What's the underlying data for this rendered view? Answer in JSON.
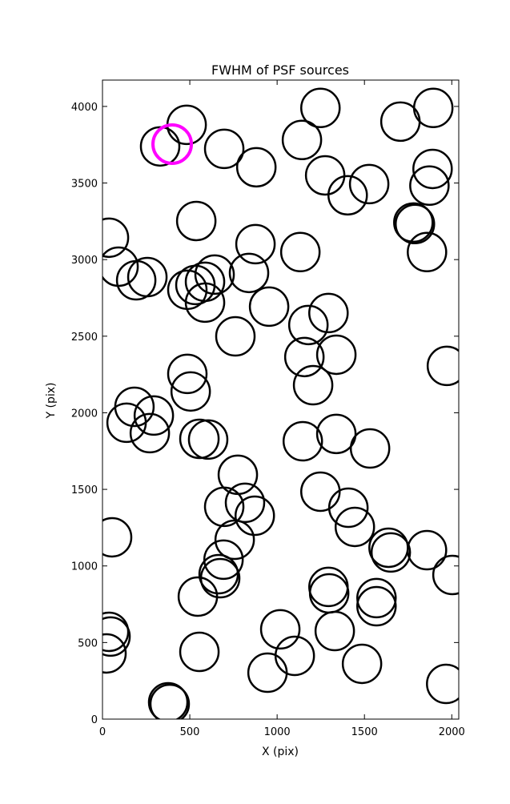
{
  "chart_data": {
    "type": "scatter",
    "title": "FWHM of PSF sources",
    "x_label": "X (pix)",
    "y_label": "Y (pix)",
    "xlim": [
      0,
      2040
    ],
    "ylim": [
      0,
      4172
    ],
    "xticks": [
      0,
      500,
      1000,
      1500,
      2000
    ],
    "yticks": [
      0,
      500,
      1000,
      1500,
      2000,
      2500,
      3000,
      3500,
      4000
    ],
    "series": [
      {
        "color": "#000000",
        "x": [
          330,
          482,
          697,
          881,
          1248,
          1142,
          1275,
          1404,
          1527,
          1706,
          1894,
          1890,
          1872,
          1780,
          1789,
          1858,
          537,
          37,
          92,
          193,
          257,
          876,
          1133,
          486,
          532,
          587,
          642,
          587,
          839,
          954,
          761,
          1179,
          1294,
          1156,
          1339,
          1206,
          1972,
          486,
          505,
          183,
          138,
          294,
          271,
          555,
          605,
          1147,
          1339,
          1532,
          775,
          697,
          816,
          872,
          757,
          1248,
          1408,
          1445,
          55,
          1638,
          1651,
          1858,
          693,
          665,
          674,
          546,
          1294,
          1298,
          1569,
          1569,
          2004,
          37,
          46,
          23,
          1018,
          1330,
          1101,
          555,
          945,
          1486,
          1968,
          376,
          385
        ],
        "values": [
          3739,
          3880,
          3723,
          3603,
          3990,
          3781,
          3550,
          3420,
          3493,
          3901,
          3990,
          3592,
          3483,
          3242,
          3232,
          3049,
          3252,
          3143,
          2954,
          2865,
          2886,
          3101,
          3049,
          2803,
          2834,
          2855,
          2902,
          2719,
          2913,
          2693,
          2499,
          2573,
          2651,
          2364,
          2379,
          2180,
          2306,
          2254,
          2139,
          2039,
          1935,
          1982,
          1867,
          1830,
          1825,
          1814,
          1862,
          1767,
          1595,
          1386,
          1412,
          1328,
          1171,
          1485,
          1380,
          1255,
          1187,
          1119,
          1088,
          1103,
          1041,
          946,
          920,
          800,
          863,
          821,
          790,
          737,
          941,
          570,
          539,
          429,
          586,
          575,
          413,
          439,
          303,
          361,
          230,
          110,
          99
        ]
      },
      {
        "color": "#ff00ff",
        "x": [
          399
        ],
        "values": [
          3754
        ]
      }
    ]
  }
}
